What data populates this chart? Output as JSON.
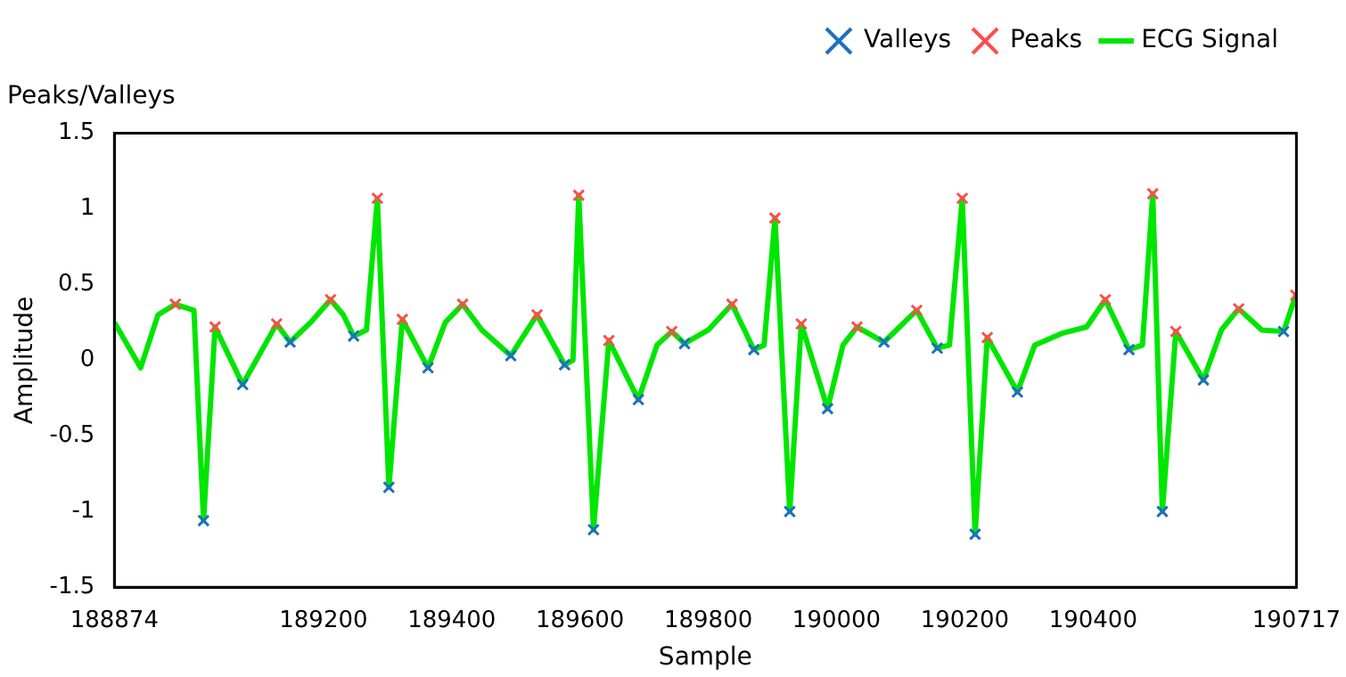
{
  "chart_data": {
    "type": "line",
    "title": "Peaks/Valleys",
    "xlabel": "Sample",
    "ylabel": "Amplitude",
    "xlim": [
      188874,
      190717
    ],
    "xticks": [
      188874,
      189200,
      189400,
      189600,
      189800,
      190000,
      190200,
      190400,
      190717
    ],
    "ylim": [
      -1.5,
      1.5
    ],
    "yticks": [
      -1.5,
      -1,
      -0.5,
      0,
      0.5,
      1,
      1.5
    ],
    "grid": false,
    "legend": "top right",
    "series": [
      {
        "name": "Valleys",
        "type": "scatter",
        "color": "#1f6fbf",
        "marker": "cross",
        "x": [
          189013,
          189074,
          189148,
          189247,
          189302,
          189363,
          189492,
          189576,
          189621,
          189691,
          189763,
          189871,
          189927,
          189986,
          190074,
          190157,
          190216,
          190282,
          190456,
          190508,
          190572,
          190697
        ],
        "values": [
          -1.06,
          -0.16,
          0.12,
          0.16,
          -0.84,
          -0.05,
          0.03,
          -0.03,
          -1.12,
          -0.26,
          0.11,
          0.07,
          -1.0,
          -0.32,
          0.12,
          0.08,
          -1.15,
          -0.21,
          0.07,
          -1.0,
          -0.13,
          0.19
        ]
      },
      {
        "name": "Peaks",
        "type": "scatter",
        "color": "#ff4d4d",
        "marker": "cross",
        "x": [
          188969,
          189031,
          189127,
          189211,
          189284,
          189323,
          189417,
          189533,
          189598,
          189645,
          189743,
          189837,
          189904,
          189945,
          190032,
          190125,
          190196,
          190235,
          190419,
          190493,
          190529,
          190627,
          190716
        ],
        "values": [
          0.37,
          0.22,
          0.24,
          0.4,
          1.07,
          0.27,
          0.37,
          0.3,
          1.09,
          0.13,
          0.19,
          0.37,
          0.94,
          0.24,
          0.22,
          0.33,
          1.07,
          0.15,
          0.4,
          1.1,
          0.19,
          0.34,
          0.43
        ]
      },
      {
        "name": "ECG Signal",
        "type": "line",
        "color": "#00e600",
        "marker": "none",
        "x": [
          188874,
          188915,
          188942,
          188969,
          188998,
          189013,
          189031,
          189074,
          189127,
          189148,
          189180,
          189211,
          189231,
          189247,
          189267,
          189284,
          189302,
          189323,
          189363,
          189390,
          189417,
          189447,
          189492,
          189533,
          189576,
          189589,
          189598,
          189621,
          189645,
          189691,
          189720,
          189743,
          189763,
          189800,
          189837,
          189871,
          189887,
          189904,
          189927,
          189945,
          189986,
          190010,
          190032,
          190074,
          190125,
          190157,
          190176,
          190196,
          190216,
          190235,
          190282,
          190309,
          190353,
          190390,
          190419,
          190456,
          190477,
          190493,
          190508,
          190529,
          190572,
          190600,
          190627,
          190663,
          190697,
          190716
        ],
        "values": [
          0.25,
          -0.05,
          0.3,
          0.37,
          0.33,
          -1.06,
          0.22,
          -0.16,
          0.24,
          0.12,
          0.25,
          0.4,
          0.3,
          0.16,
          0.2,
          1.07,
          -0.84,
          0.27,
          -0.05,
          0.25,
          0.37,
          0.2,
          0.03,
          0.3,
          -0.03,
          0.0,
          1.09,
          -1.12,
          0.13,
          -0.26,
          0.1,
          0.19,
          0.11,
          0.2,
          0.37,
          0.07,
          0.1,
          0.94,
          -1.0,
          0.24,
          -0.32,
          0.1,
          0.22,
          0.12,
          0.33,
          0.08,
          0.1,
          1.07,
          -1.15,
          0.15,
          -0.21,
          0.1,
          0.18,
          0.22,
          0.4,
          0.07,
          0.1,
          1.1,
          -1.0,
          0.19,
          -0.13,
          0.2,
          0.34,
          0.2,
          0.19,
          0.43
        ]
      }
    ]
  }
}
